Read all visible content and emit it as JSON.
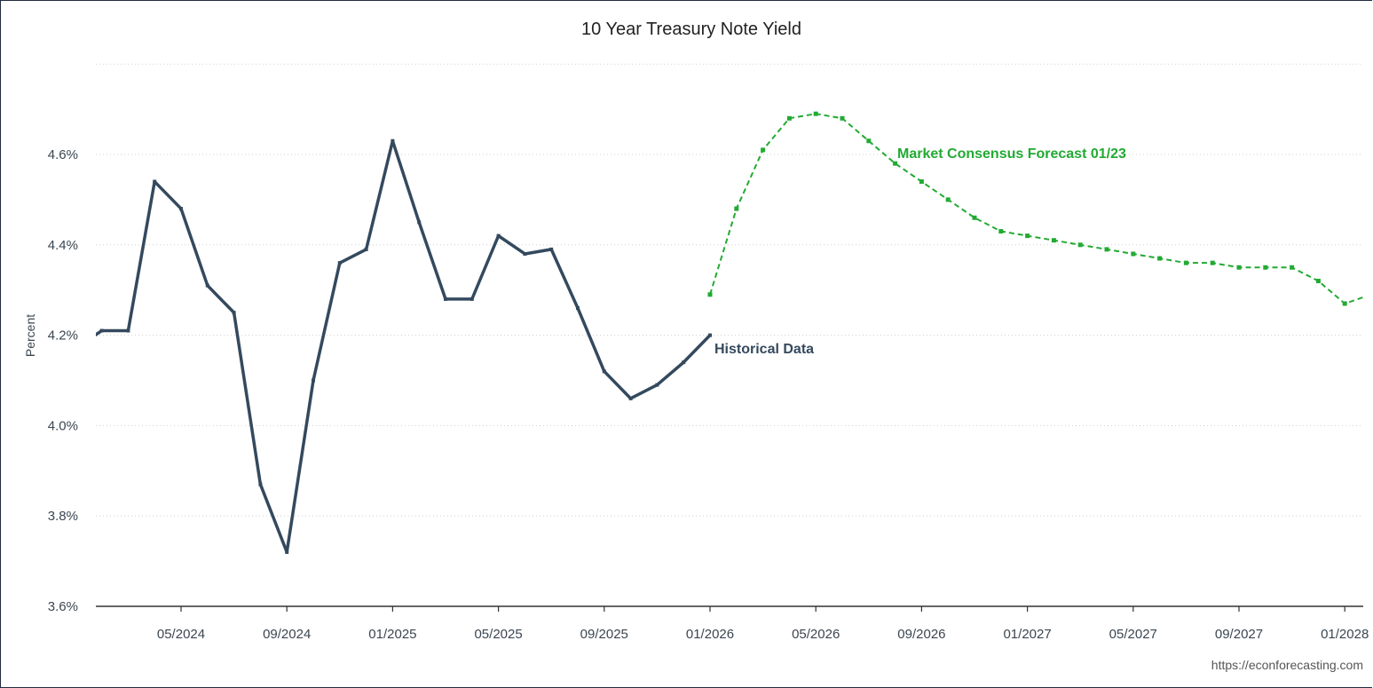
{
  "chart_data": {
    "type": "line",
    "title": "10 Year Treasury Note Yield",
    "ylabel": "Percent",
    "xlabel": "",
    "ylim": [
      3.6,
      4.8
    ],
    "yticks": [
      "3.6%",
      "3.8%",
      "4.0%",
      "4.2%",
      "4.4%",
      "4.6%"
    ],
    "ytick_values": [
      3.6,
      3.8,
      4.0,
      4.2,
      4.4,
      4.6
    ],
    "xticks": [
      "05/2024",
      "09/2024",
      "01/2025",
      "05/2025",
      "09/2025",
      "01/2026",
      "05/2026",
      "09/2026",
      "01/2027",
      "05/2027",
      "09/2027",
      "01/2028"
    ],
    "xtick_months": [
      "2024-05",
      "2024-09",
      "2025-01",
      "2025-05",
      "2025-09",
      "2026-01",
      "2026-05",
      "2026-09",
      "2027-01",
      "2027-05",
      "2027-09",
      "2028-01"
    ],
    "grid": "horizontal dotted",
    "series": [
      {
        "name": "Historical Data",
        "color": "#34495e",
        "style": "solid",
        "x": [
          "2024-01",
          "2024-02",
          "2024-03",
          "2024-04",
          "2024-05",
          "2024-06",
          "2024-07",
          "2024-08",
          "2024-09",
          "2024-10",
          "2024-11",
          "2024-12",
          "2025-01",
          "2025-02",
          "2025-03",
          "2025-04",
          "2025-05",
          "2025-06",
          "2025-07",
          "2025-08",
          "2025-09",
          "2025-10",
          "2025-11",
          "2025-12",
          "2026-01"
        ],
        "values": [
          4.17,
          4.21,
          4.21,
          4.54,
          4.48,
          4.31,
          4.25,
          3.87,
          3.72,
          4.1,
          4.36,
          4.39,
          4.63,
          4.45,
          4.28,
          4.28,
          4.42,
          4.38,
          4.39,
          4.26,
          4.12,
          4.06,
          4.09,
          4.14,
          4.2
        ]
      },
      {
        "name": "Market Consensus Forecast 01/23",
        "color": "#22aa33",
        "style": "dashed",
        "x": [
          "2026-01",
          "2026-02",
          "2026-03",
          "2026-04",
          "2026-05",
          "2026-06",
          "2026-07",
          "2026-08",
          "2026-09",
          "2026-10",
          "2026-11",
          "2026-12",
          "2027-01",
          "2027-02",
          "2027-03",
          "2027-04",
          "2027-05",
          "2027-06",
          "2027-07",
          "2027-08",
          "2027-09",
          "2027-10",
          "2027-11",
          "2027-12",
          "2028-01",
          "2028-02"
        ],
        "values": [
          4.29,
          4.48,
          4.61,
          4.68,
          4.69,
          4.68,
          4.63,
          4.58,
          4.54,
          4.5,
          4.46,
          4.43,
          4.42,
          4.41,
          4.4,
          4.39,
          4.38,
          4.37,
          4.36,
          4.36,
          4.35,
          4.35,
          4.35,
          4.32,
          4.27,
          4.29
        ]
      }
    ]
  },
  "annotations": {
    "historical": "Historical Data",
    "forecast": "Market Consensus Forecast 01/23"
  },
  "credit": "https://econforecasting.com"
}
